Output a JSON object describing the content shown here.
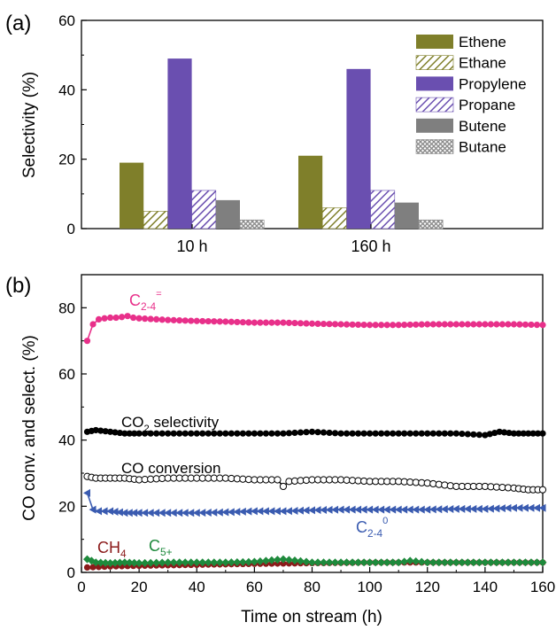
{
  "panel_a": {
    "label": "(a)",
    "chart_data": {
      "type": "bar",
      "categories": [
        "10 h",
        "160 h"
      ],
      "ylabel": "Selectivity (%)",
      "ylim": [
        0,
        60
      ],
      "yticks": [
        0,
        20,
        40,
        60
      ],
      "grid": false,
      "legend_placement": "top-right",
      "series": [
        {
          "name": "Ethene",
          "values": [
            19,
            21
          ],
          "color": "#7f7f2a",
          "pattern": "solid"
        },
        {
          "name": "Ethane",
          "values": [
            5,
            6
          ],
          "color": "#7f7f2a",
          "pattern": "diagonal"
        },
        {
          "name": "Propylene",
          "values": [
            49,
            46
          ],
          "color": "#6a4fb0",
          "pattern": "solid"
        },
        {
          "name": "Propane",
          "values": [
            11,
            11
          ],
          "color": "#6a4fb0",
          "pattern": "diagonal"
        },
        {
          "name": "Butene",
          "values": [
            8.2,
            7.5
          ],
          "color": "#7f7f7f",
          "pattern": "solid"
        },
        {
          "name": "Butane",
          "values": [
            2.5,
            2.5
          ],
          "color": "#8c8c8c",
          "pattern": "crosshatch"
        }
      ]
    }
  },
  "panel_b": {
    "label": "(b)",
    "chart_data": {
      "type": "line",
      "xlabel": "Time on stream (h)",
      "ylabel": "CO conv. and select. (%)",
      "xlim": [
        0,
        160
      ],
      "ylim": [
        0,
        90
      ],
      "xticks": [
        0,
        20,
        40,
        60,
        80,
        100,
        120,
        140,
        160
      ],
      "yticks": [
        0,
        20,
        40,
        60,
        80
      ],
      "grid": false,
      "series": [
        {
          "name": "C2-4=",
          "marker": "circle-filled",
          "color": "#e8308a",
          "x": [
            2,
            4,
            6,
            8,
            10,
            12,
            14,
            16,
            18,
            20,
            30,
            40,
            50,
            60,
            70,
            80,
            90,
            100,
            110,
            120,
            130,
            140,
            150,
            160
          ],
          "y": [
            70,
            75,
            76.5,
            76.8,
            77,
            77,
            77.2,
            77.5,
            77,
            76.8,
            76.3,
            76,
            75.8,
            75.5,
            75.5,
            75.2,
            75,
            74.8,
            74.8,
            75,
            75,
            75,
            75,
            74.8
          ]
        },
        {
          "name": "CO2 selectivity",
          "marker": "circle-filled",
          "color": "#000000",
          "x": [
            2,
            5,
            10,
            15,
            20,
            30,
            40,
            50,
            60,
            70,
            80,
            90,
            100,
            110,
            120,
            130,
            140,
            145,
            150,
            155,
            160
          ],
          "y": [
            42.5,
            43,
            42.5,
            42,
            42,
            42,
            42,
            42,
            42,
            42,
            42.5,
            42,
            42,
            42,
            42,
            42,
            41.5,
            42.5,
            42,
            42,
            42
          ]
        },
        {
          "name": "CO conversion",
          "marker": "circle-open",
          "color": "#000000",
          "x": [
            2,
            5,
            10,
            15,
            20,
            30,
            40,
            50,
            60,
            68,
            70,
            72,
            80,
            90,
            100,
            110,
            120,
            130,
            140,
            150,
            155,
            160
          ],
          "y": [
            29,
            28.5,
            28.5,
            28.5,
            28,
            28.5,
            28.5,
            28.5,
            28,
            28,
            26,
            27.5,
            28,
            28,
            27.5,
            27.5,
            27,
            26,
            26,
            25.5,
            25,
            25
          ]
        },
        {
          "name": "C2-40",
          "marker": "triangle-left-filled",
          "color": "#3a5bb0",
          "x": [
            2,
            4,
            6,
            8,
            10,
            15,
            20,
            30,
            40,
            50,
            60,
            70,
            80,
            90,
            100,
            110,
            120,
            130,
            140,
            150,
            160
          ],
          "y": [
            24,
            19,
            18.5,
            18.5,
            18.5,
            18,
            18,
            18,
            18,
            18.2,
            18.5,
            18.5,
            18.8,
            19,
            19,
            19,
            19,
            19.2,
            19.2,
            19.5,
            19.5
          ]
        },
        {
          "name": "CH4",
          "marker": "circle-filled",
          "color": "#8b1a1a",
          "x": [
            2,
            10,
            20,
            40,
            60,
            80,
            100,
            120,
            140,
            160
          ],
          "y": [
            1.5,
            1.8,
            2.0,
            2.3,
            2.6,
            2.8,
            3.0,
            3.0,
            3.0,
            3.0
          ]
        },
        {
          "name": "C5+",
          "marker": "diamond-filled",
          "color": "#1e8a3c",
          "x": [
            2,
            5,
            10,
            15,
            20,
            30,
            40,
            50,
            60,
            70,
            80,
            90,
            100,
            110,
            114,
            120,
            130,
            140,
            150,
            160
          ],
          "y": [
            4,
            3,
            2.8,
            3,
            2.8,
            3,
            3,
            3,
            3.2,
            4,
            3,
            3,
            3,
            3,
            3.5,
            3,
            3,
            3,
            3,
            3
          ]
        }
      ],
      "annotations": [
        {
          "text": "C",
          "sub": "2-4",
          "sup": "=",
          "color": "#e8308a"
        },
        {
          "text": "CO",
          "sub": "2",
          "after": " selectivity",
          "color": "#000000"
        },
        {
          "text": "CO conversion",
          "color": "#000000"
        },
        {
          "text": "C",
          "sub": "2-4",
          "sup": "0",
          "color": "#3a5bb0"
        },
        {
          "text": "CH",
          "sub": "4",
          "color": "#8b1a1a"
        },
        {
          "text": "C",
          "sub": "5+",
          "color": "#1e8a3c"
        }
      ]
    }
  }
}
